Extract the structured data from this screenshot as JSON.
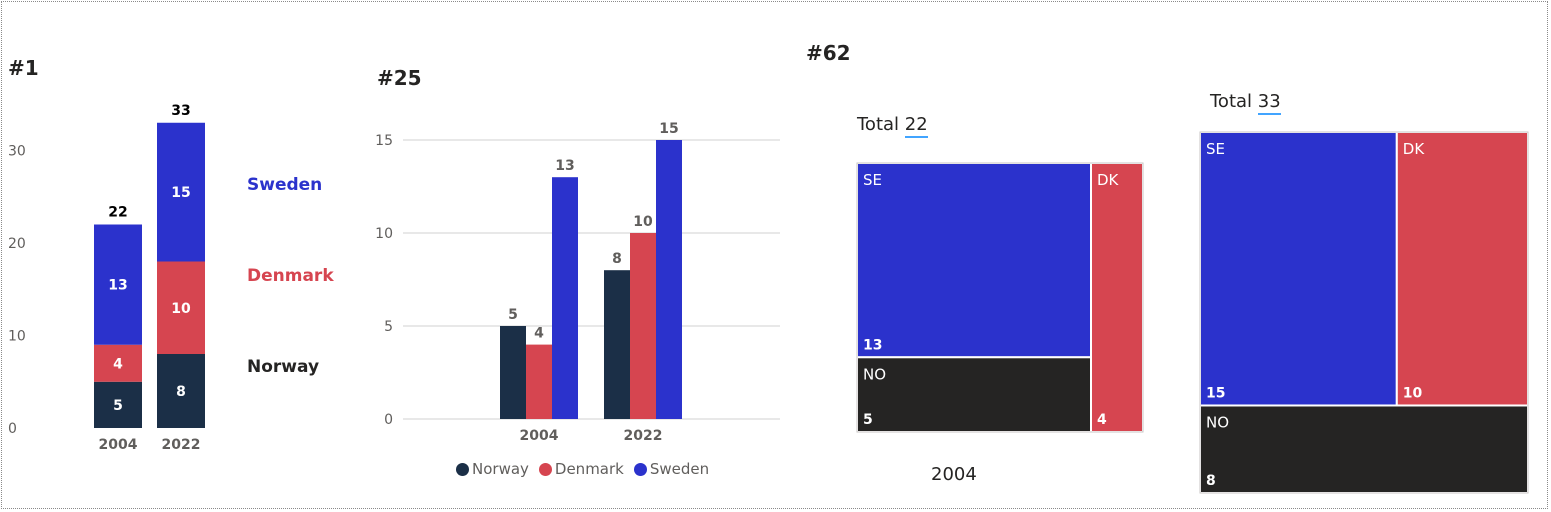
{
  "panels": {
    "p1_title": "#1",
    "p2_title": "#25",
    "p3_title": "#62"
  },
  "colors": {
    "norway": "#1b2f47",
    "denmark": "#d64550",
    "sweden": "#2b32cc",
    "treemap_no": "#252423"
  },
  "chart_data": [
    {
      "type": "bar",
      "stacked": true,
      "categories": [
        "2004",
        "2022"
      ],
      "series": [
        {
          "name": "Norway",
          "values": [
            5,
            8
          ]
        },
        {
          "name": "Denmark",
          "values": [
            4,
            10
          ]
        },
        {
          "name": "Sweden",
          "values": [
            13,
            15
          ]
        }
      ],
      "totals": [
        22,
        33
      ],
      "yticks": [
        0,
        10,
        20,
        30
      ],
      "ylim": [
        0,
        33
      ],
      "legend": "right, inline labels",
      "grid": false
    },
    {
      "type": "bar",
      "stacked": false,
      "categories": [
        "2004",
        "2022"
      ],
      "series": [
        {
          "name": "Norway",
          "values": [
            5,
            8
          ]
        },
        {
          "name": "Denmark",
          "values": [
            4,
            10
          ]
        },
        {
          "name": "Sweden",
          "values": [
            13,
            15
          ]
        }
      ],
      "yticks": [
        0,
        5,
        10,
        15
      ],
      "ylim": [
        0,
        15
      ],
      "legend": "bottom",
      "grid": true
    },
    {
      "type": "treemap",
      "caption": "2004",
      "total_label": "Total",
      "total": 22,
      "cells": [
        {
          "label": "SE",
          "value": 13
        },
        {
          "label": "DK",
          "value": 4
        },
        {
          "label": "NO",
          "value": 5
        }
      ]
    },
    {
      "type": "treemap",
      "total_label": "Total",
      "total": 33,
      "cells": [
        {
          "label": "SE",
          "value": 15
        },
        {
          "label": "DK",
          "value": 10
        },
        {
          "label": "NO",
          "value": 8
        }
      ]
    }
  ]
}
